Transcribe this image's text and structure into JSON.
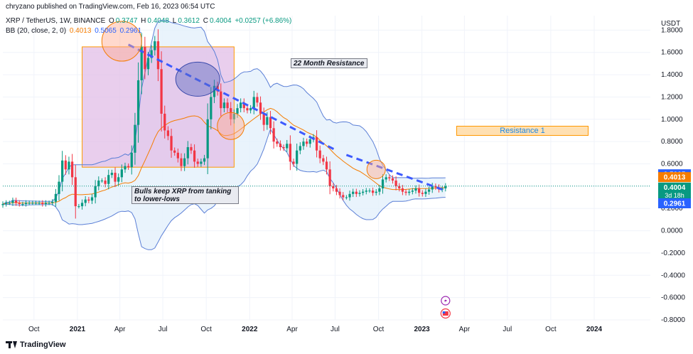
{
  "header": {
    "published": "chryzano published on TradingView.com, Feb 16, 2023 06:54 UTC",
    "symbol": "XRP / TetherUS, 1W, BINANCE",
    "o_label": "O",
    "o_value": "0.3747",
    "h_label": "H",
    "h_value": "0.4048",
    "l_label": "L",
    "l_value": "0.3612",
    "c_label": "C",
    "c_value": "0.4004",
    "change": "+0.0257 (+6.86%)",
    "bb_label": "BB (20, close, 2, 0)",
    "bb_basis": "0.4013",
    "bb_upper": "0.5065",
    "bb_lower": "0.2961"
  },
  "footer": {
    "brand": "TradingView"
  },
  "colors": {
    "up": "#089981",
    "down": "#f23645",
    "basis": "#f57c00",
    "band": "#5b7fd6",
    "bandfill": "#e3f0fb",
    "box": "#e1bee7",
    "dash": "#3d5afe"
  },
  "icons": [
    "tradingview-logo-icon",
    "lightning-icon",
    "us-flag-icon"
  ],
  "chart_data": {
    "type": "candlestick",
    "currency": "USDT",
    "yticks": [
      "1.8000",
      "1.6000",
      "1.4000",
      "1.2000",
      "1.0000",
      "0.8000",
      "0.6000",
      "0.4000",
      "0.2000",
      "0.0000",
      "-0.2000",
      "-0.4000",
      "-0.6000",
      "-0.8000"
    ],
    "ylim": [
      -0.8,
      1.93
    ],
    "xticks": [
      "Oct",
      "2021",
      "Apr",
      "Jul",
      "Oct",
      "2022",
      "Apr",
      "Jul",
      "Oct",
      "2023",
      "Apr",
      "Jul",
      "Oct",
      "2024"
    ],
    "xtick_dates": [
      "2020-10-01",
      "2021-01-01",
      "2021-04-01",
      "2021-07-01",
      "2021-10-01",
      "2022-01-01",
      "2022-04-01",
      "2022-07-01",
      "2022-10-01",
      "2023-01-01",
      "2023-04-01",
      "2023-07-01",
      "2023-10-01",
      "2024-01-01"
    ],
    "xlim": [
      "2020-07-27",
      "2024-04-29"
    ],
    "price_labels": {
      "upper": "0.5065",
      "basis": "0.4013",
      "last": "0.4004",
      "countdown": "3d 18h",
      "lower": "0.2961"
    },
    "close": [
      0.24,
      0.25,
      0.25,
      0.27,
      0.25,
      0.24,
      0.24,
      0.25,
      0.25,
      0.25,
      0.25,
      0.25,
      0.24,
      0.25,
      0.25,
      0.26,
      0.33,
      0.44,
      0.63,
      0.55,
      0.62,
      0.48,
      0.22,
      0.22,
      0.25,
      0.28,
      0.27,
      0.3,
      0.4,
      0.45,
      0.45,
      0.42,
      0.5,
      0.52,
      0.44,
      0.48,
      0.55,
      0.58,
      0.57,
      0.7,
      0.95,
      1.35,
      1.65,
      1.45,
      1.55,
      1.62,
      1.7,
      1.45,
      1.05,
      0.9,
      0.85,
      0.72,
      0.7,
      0.65,
      0.58,
      0.65,
      0.75,
      0.72,
      0.62,
      0.6,
      0.62,
      0.65,
      1.0,
      1.2,
      1.3,
      1.25,
      1.1,
      1.15,
      1.1,
      1.0,
      1.05,
      1.1,
      1.15,
      1.1,
      1.08,
      1.1,
      1.2,
      1.15,
      1.05,
      0.95,
      1.02,
      0.92,
      0.8,
      0.78,
      0.75,
      0.74,
      0.78,
      0.62,
      0.6,
      0.72,
      0.76,
      0.8,
      0.78,
      0.82,
      0.84,
      0.72,
      0.65,
      0.62,
      0.55,
      0.4,
      0.38,
      0.35,
      0.32,
      0.3,
      0.3,
      0.33,
      0.35,
      0.33,
      0.34,
      0.35,
      0.36,
      0.36,
      0.34,
      0.35,
      0.38,
      0.46,
      0.48,
      0.47,
      0.45,
      0.4,
      0.38,
      0.35,
      0.34,
      0.35,
      0.36,
      0.38,
      0.34,
      0.33,
      0.35,
      0.37,
      0.4,
      0.39,
      0.37,
      0.38,
      0.4
    ]
  }
}
